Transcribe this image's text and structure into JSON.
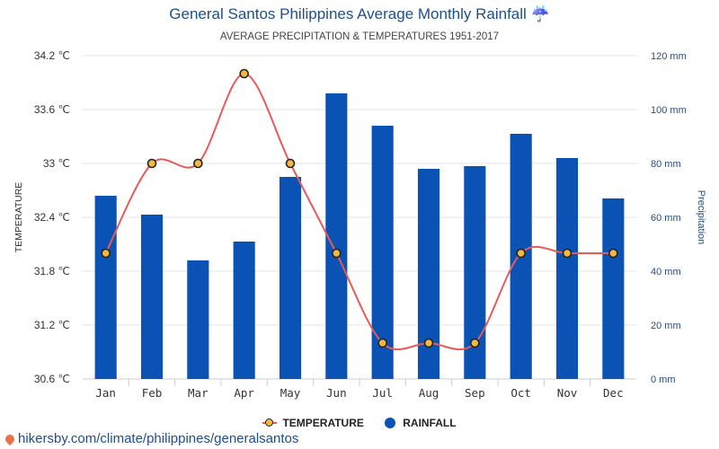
{
  "title": "General Santos Philippines Average Monthly Rainfall ☔",
  "subtitle": "AVERAGE PRECIPITATION & TEMPERATURES 1951-2017",
  "source": "hikersby.com/climate/philippines/generalsantos",
  "legend": {
    "temperature": "TEMPERATURE",
    "rainfall": "RAINFALL"
  },
  "colors": {
    "bar": "#0a52b3",
    "line": "#e85a5a",
    "marker_fill": "#f2b942",
    "marker_stroke": "#222222",
    "title": "#1f4e8c"
  },
  "chart_data": {
    "type": "bar",
    "categories": [
      "Jan",
      "Feb",
      "Mar",
      "Apr",
      "May",
      "Jun",
      "Jul",
      "Aug",
      "Sep",
      "Oct",
      "Nov",
      "Dec"
    ],
    "series": [
      {
        "name": "RAINFALL",
        "type": "bar",
        "axis": "right",
        "values": [
          68,
          61,
          44,
          51,
          75,
          106,
          94,
          78,
          79,
          91,
          82,
          67
        ]
      },
      {
        "name": "TEMPERATURE",
        "type": "line",
        "axis": "left",
        "values": [
          32,
          33,
          33,
          34,
          33,
          32,
          31,
          31,
          31,
          32,
          32,
          32
        ]
      }
    ],
    "ylabel_left": "TEMPERATURE",
    "ylabel_right": "Precipitation",
    "ylim_left": [
      30.6,
      34.2
    ],
    "yticks_left": [
      "34.2 ℃",
      "33.6 ℃",
      "33 ℃",
      "32.4 ℃",
      "31.8 ℃",
      "31.2 ℃",
      "30.6 ℃"
    ],
    "ylim_right": [
      0,
      120
    ],
    "yticks_right": [
      "120 mm",
      "100 mm",
      "80 mm",
      "60 mm",
      "40 mm",
      "20 mm",
      "0 mm"
    ],
    "grid": true,
    "legend_position": "bottom"
  }
}
